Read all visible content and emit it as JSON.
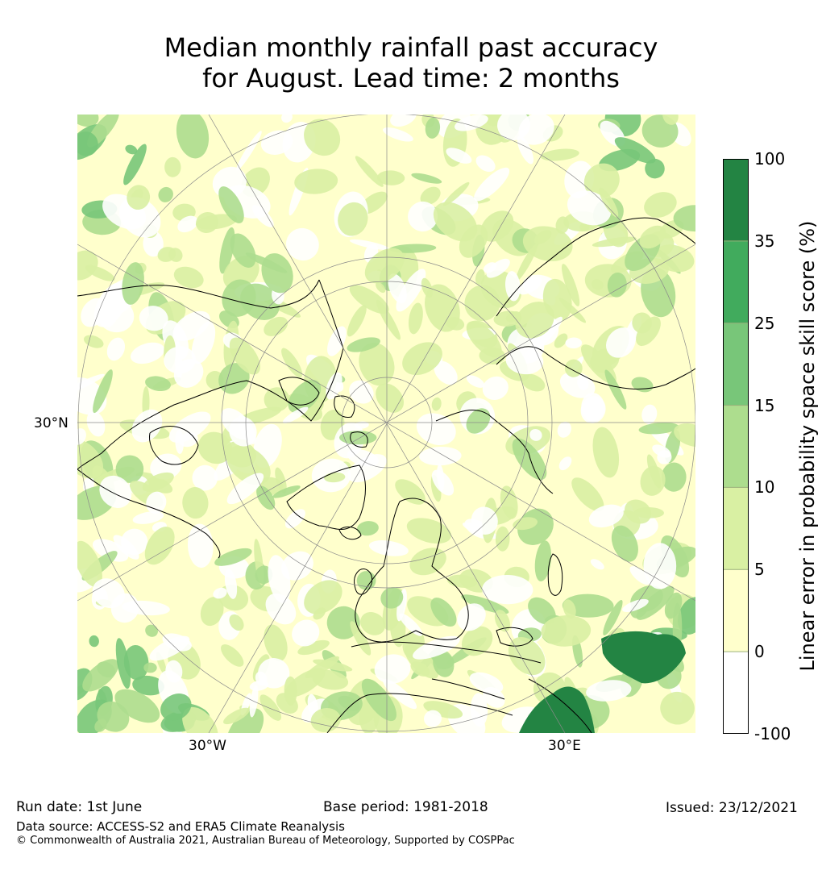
{
  "title": {
    "line1": "Median monthly rainfall past accuracy",
    "line2": "for August. Lead time: 2 months"
  },
  "map": {
    "projection": "north-polar-stereographic",
    "lat_label": "30°N",
    "lon_labels": {
      "west": "30°W",
      "east": "30°E"
    },
    "colors": {
      "land_outline": "#000000",
      "graticule": "#8a8a8a"
    }
  },
  "colorbar": {
    "title": "Linear error in probability space skill score (%)",
    "tick_labels": [
      "100",
      "35",
      "25",
      "15",
      "10",
      "5",
      "0",
      "-100"
    ],
    "bins": [
      {
        "range": "35 to 100",
        "color": "#238443"
      },
      {
        "range": "25 to 35",
        "color": "#41ab5d"
      },
      {
        "range": "15 to 25",
        "color": "#78c679"
      },
      {
        "range": "10 to 15",
        "color": "#addd8e"
      },
      {
        "range": "5 to 10",
        "color": "#d9f0a3"
      },
      {
        "range": "0 to 5",
        "color": "#ffffcc"
      },
      {
        "range": "-100 to 0",
        "color": "#ffffff"
      }
    ]
  },
  "footer": {
    "run_date": "Run date: 1st June",
    "base_period": "Base period: 1981-2018",
    "issued": "Issued: 23/12/2021",
    "data_source": "Data source: ACCESS-S2 and ERA5 Climate Reanalysis",
    "copyright": "© Commonwealth of Australia 2021, Australian Bureau of Meteorology, Supported by COSPPac"
  }
}
